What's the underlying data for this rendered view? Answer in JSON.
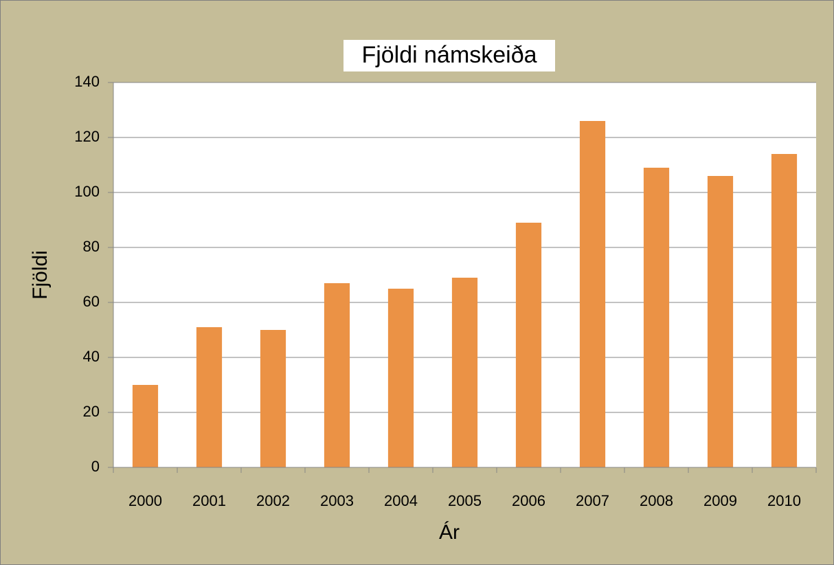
{
  "chart_data": {
    "type": "bar",
    "title": "Fjöldi námskeiða",
    "x_label": "Ár",
    "y_label": "Fjöldi",
    "categories": [
      "2000",
      "2001",
      "2002",
      "2003",
      "2004",
      "2005",
      "2006",
      "2007",
      "2008",
      "2009",
      "2010"
    ],
    "values": [
      30,
      51,
      50,
      67,
      65,
      69,
      89,
      126,
      109,
      106,
      114
    ],
    "color": "#eb9245",
    "ylim": [
      0,
      140
    ],
    "yticks": [
      0,
      20,
      40,
      60,
      80,
      100,
      120,
      140
    ],
    "grid": true
  }
}
